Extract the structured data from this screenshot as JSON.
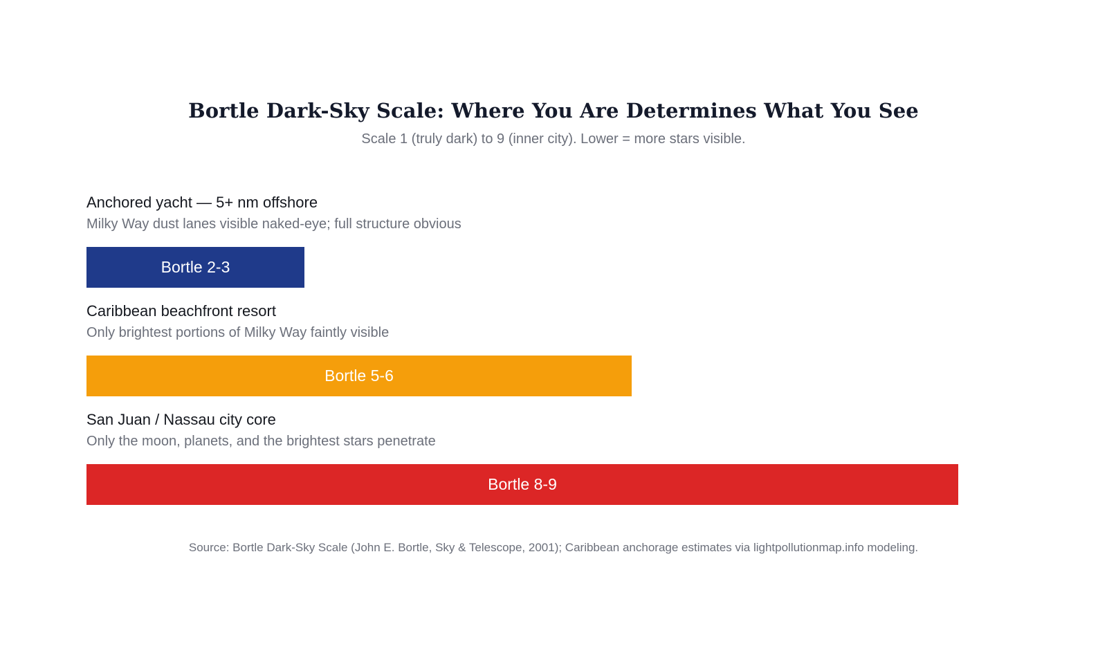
{
  "chart_data": {
    "type": "bar",
    "orientation": "horizontal",
    "title": "Bortle Dark-Sky Scale: Where You Are Determines What You See",
    "subtitle": "Scale 1 (truly dark) to 9 (inner city). Lower = more stars visible.",
    "xlim": [
      0,
      9
    ],
    "grid": false,
    "categories": [
      "Anchored yacht — 5+ nm offshore",
      "Caribbean beachfront resort",
      "San Juan / Nassau city core"
    ],
    "descriptions": [
      "Milky Way dust lanes visible naked-eye; full structure obvious",
      "Only brightest portions of Milky Way faintly visible",
      "Only the moon, planets, and the brightest stars penetrate"
    ],
    "data_labels": [
      "Bortle 2-3",
      "Bortle 5-6",
      "Bortle 8-9"
    ],
    "values": [
      2.25,
      5.63,
      9
    ],
    "colors": [
      "#1f3a8a",
      "#f59e0b",
      "#dc2626"
    ],
    "source": "Source: Bortle Dark-Sky Scale (John E. Bortle, Sky & Telescope, 2001); Caribbean anchorage estimates via lightpollutionmap.info modeling."
  }
}
